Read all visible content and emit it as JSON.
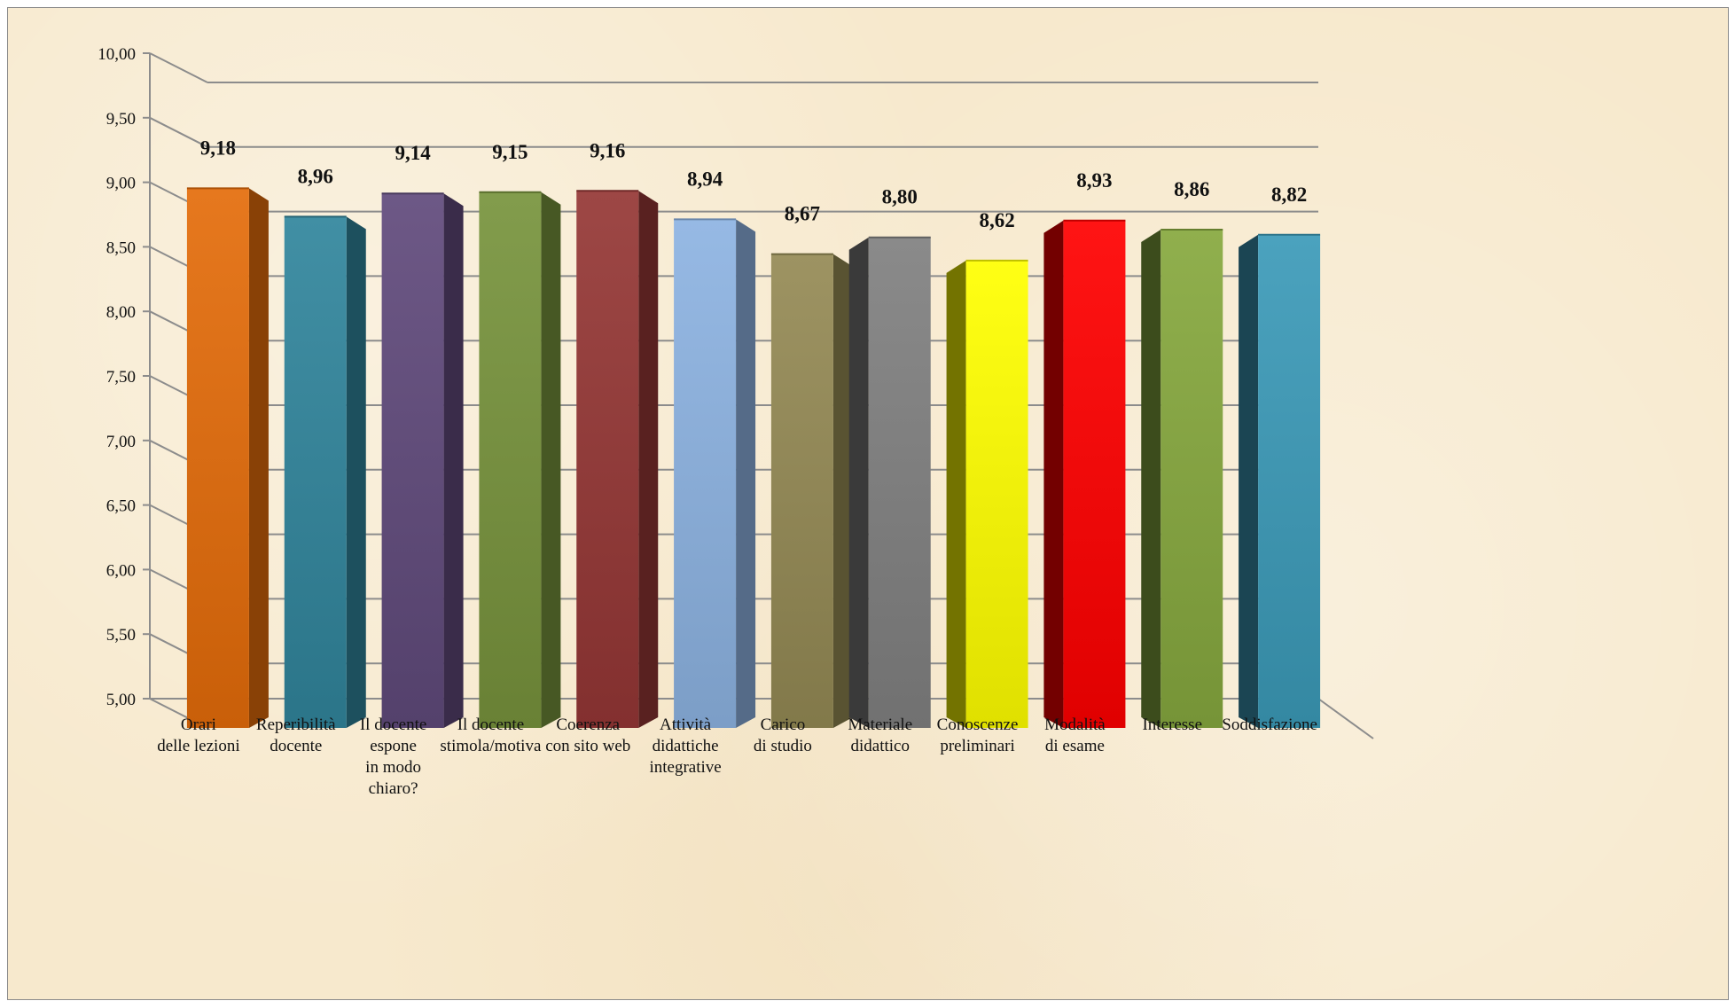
{
  "chart_data": {
    "type": "bar",
    "title": "",
    "xlabel": "",
    "ylabel": "",
    "ylim": [
      5,
      10
    ],
    "yticks": [
      "5,00",
      "5,50",
      "6,00",
      "6,50",
      "7,00",
      "7,50",
      "8,00",
      "8,50",
      "9,00",
      "9,50",
      "10,00"
    ],
    "grid": true,
    "legend": "none",
    "categories": [
      "Orari\ndelle lezioni",
      "Reperibilità\ndocente",
      "Il docente\nespone\nin modo\nchiaro?",
      "Il docente\nstimola/motiva",
      "Coerenza\ncon sito web",
      "Attività\ndidattiche\nintegrative",
      "Carico\ndi studio",
      "Materiale\ndidattico",
      "Conoscenze\npreliminari",
      "Modalità\ndi esame",
      "Interesse",
      "Soddisfazione"
    ],
    "values": [
      9.18,
      8.96,
      9.14,
      9.15,
      9.16,
      8.94,
      8.67,
      8.8,
      8.62,
      8.93,
      8.86,
      8.82
    ],
    "value_labels": [
      "9,18",
      "8,96",
      "9,14",
      "9,15",
      "9,16",
      "8,94",
      "8,67",
      "8,80",
      "8,62",
      "8,93",
      "8,86",
      "8,82"
    ],
    "colors": [
      "#e46c0a",
      "#31859c",
      "#604a7b",
      "#77933c",
      "#953735",
      "#8db3e2",
      "#948a54",
      "#808080",
      "#ffff00",
      "#ff0000",
      "#86a83e",
      "#3b9ab8"
    ]
  }
}
